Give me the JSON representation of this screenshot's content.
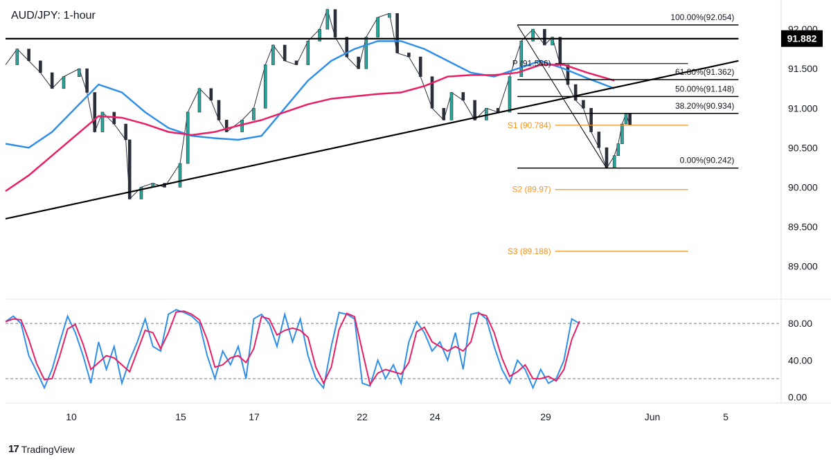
{
  "header": {
    "title": "AUD/JPY: 1-hour"
  },
  "branding": {
    "logo_mark": "17",
    "logo_text": "TradingView"
  },
  "chart_data": {
    "type": "candlestick",
    "symbol": "AUD/JPY",
    "timeframe": "1-hour",
    "price_axis": {
      "ticks": [
        "92.000",
        "91.500",
        "91.000",
        "90.500",
        "90.000",
        "89.500",
        "89.000"
      ],
      "tick_values": [
        92.0,
        91.5,
        91.0,
        90.5,
        90.0,
        89.5,
        89.0
      ],
      "current_price_label": "91.882",
      "current_price": 91.882,
      "ylim": [
        88.6,
        92.3
      ]
    },
    "time_axis": {
      "ticks": [
        "10",
        "15",
        "17",
        "22",
        "24",
        "29",
        "Jun",
        "5"
      ],
      "xlim": [
        0,
        100
      ]
    },
    "price_path": [
      [
        0,
        91.55
      ],
      [
        1.5,
        91.75
      ],
      [
        3,
        91.6
      ],
      [
        4.5,
        91.45
      ],
      [
        6,
        91.25
      ],
      [
        7.5,
        91.4
      ],
      [
        9.5,
        91.5
      ],
      [
        10.5,
        91.2
      ],
      [
        11.5,
        90.7
      ],
      [
        12.5,
        90.95
      ],
      [
        14,
        90.8
      ],
      [
        15.5,
        90.6
      ],
      [
        16,
        89.85
      ],
      [
        17.5,
        90.0
      ],
      [
        19,
        90.05
      ],
      [
        20.5,
        90.0
      ],
      [
        22.5,
        90.3
      ],
      [
        23.5,
        90.95
      ],
      [
        25,
        91.25
      ],
      [
        26.5,
        91.1
      ],
      [
        27.5,
        90.85
      ],
      [
        28.5,
        90.7
      ],
      [
        30.5,
        90.85
      ],
      [
        32,
        91.0
      ],
      [
        33.5,
        91.55
      ],
      [
        34.5,
        91.8
      ],
      [
        36,
        91.6
      ],
      [
        37.5,
        91.55
      ],
      [
        39,
        91.85
      ],
      [
        40.5,
        92.0
      ],
      [
        41.5,
        92.25
      ],
      [
        42.5,
        91.9
      ],
      [
        44,
        91.65
      ],
      [
        45.5,
        91.5
      ],
      [
        46.5,
        91.9
      ],
      [
        48,
        92.15
      ],
      [
        49.5,
        92.2
      ],
      [
        50.5,
        91.7
      ],
      [
        52,
        91.65
      ],
      [
        53.5,
        91.4
      ],
      [
        55,
        91.0
      ],
      [
        56.5,
        90.85
      ],
      [
        57.5,
        91.2
      ],
      [
        59,
        91.1
      ],
      [
        60.5,
        90.85
      ],
      [
        62,
        91.0
      ],
      [
        63.5,
        90.95
      ],
      [
        65,
        91.4
      ],
      [
        66.5,
        91.85
      ],
      [
        68,
        92.0
      ],
      [
        69.5,
        91.8
      ],
      [
        70.5,
        91.9
      ],
      [
        71.5,
        91.55
      ],
      [
        72.5,
        91.3
      ],
      [
        73.5,
        91.1
      ],
      [
        74.5,
        91.0
      ],
      [
        75.5,
        90.7
      ],
      [
        76.5,
        90.5
      ],
      [
        77.5,
        90.24
      ],
      [
        78.5,
        90.4
      ],
      [
        79,
        90.55
      ],
      [
        79.5,
        90.8
      ],
      [
        80,
        90.93
      ],
      [
        80.5,
        90.784
      ]
    ],
    "series": [
      {
        "name": "",
        "color": "#2f8fe8",
        "values": [
          [
            0,
            90.55
          ],
          [
            3,
            90.5
          ],
          [
            6,
            90.7
          ],
          [
            9,
            91.0
          ],
          [
            12,
            91.3
          ],
          [
            15,
            91.2
          ],
          [
            18,
            90.95
          ],
          [
            21,
            90.75
          ],
          [
            24,
            90.65
          ],
          [
            27,
            90.62
          ],
          [
            30,
            90.6
          ],
          [
            33,
            90.65
          ],
          [
            36,
            91.0
          ],
          [
            39,
            91.35
          ],
          [
            42,
            91.6
          ],
          [
            45,
            91.75
          ],
          [
            48,
            91.85
          ],
          [
            51,
            91.85
          ],
          [
            54,
            91.75
          ],
          [
            57,
            91.6
          ],
          [
            60,
            91.45
          ],
          [
            63,
            91.4
          ],
          [
            66,
            91.5
          ],
          [
            69,
            91.6
          ],
          [
            72,
            91.5
          ],
          [
            75,
            91.38
          ],
          [
            78.5,
            91.25
          ]
        ]
      },
      {
        "name": "",
        "color": "#e91e63",
        "values": [
          [
            0,
            89.95
          ],
          [
            3,
            90.15
          ],
          [
            6,
            90.4
          ],
          [
            9,
            90.65
          ],
          [
            12,
            90.9
          ],
          [
            15,
            90.88
          ],
          [
            18,
            90.8
          ],
          [
            21,
            90.7
          ],
          [
            24,
            90.66
          ],
          [
            27,
            90.7
          ],
          [
            30,
            90.78
          ],
          [
            33,
            90.85
          ],
          [
            36,
            90.95
          ],
          [
            39,
            91.05
          ],
          [
            42,
            91.12
          ],
          [
            45,
            91.15
          ],
          [
            48,
            91.18
          ],
          [
            51,
            91.2
          ],
          [
            54,
            91.28
          ],
          [
            57,
            91.4
          ],
          [
            60,
            91.42
          ],
          [
            63,
            91.42
          ],
          [
            66,
            91.45
          ],
          [
            69,
            91.55
          ],
          [
            72,
            91.55
          ],
          [
            75,
            91.45
          ],
          [
            78.5,
            91.35
          ]
        ]
      }
    ],
    "trendlines": [
      {
        "name": "ascending-trendline",
        "from": [
          0,
          89.6
        ],
        "to": [
          94.5,
          91.6
        ]
      },
      {
        "name": "horizontal-resistance",
        "from": [
          0,
          91.88
        ],
        "to": [
          94.5,
          91.88
        ]
      },
      {
        "name": "descending-fib-line",
        "from": [
          66,
          92.05
        ],
        "to": [
          77.5,
          90.24
        ]
      }
    ],
    "fibonacci": [
      {
        "label": "100.00%(92.054)",
        "value": 92.054,
        "x1": 66,
        "x2": 94.5
      },
      {
        "label": "61.80%(91.362)",
        "value": 91.362,
        "x1": 66,
        "x2": 94.5
      },
      {
        "label": "50.00%(91.148)",
        "value": 91.148,
        "x1": 66,
        "x2": 94.5
      },
      {
        "label": "38.20%(90.934)",
        "value": 90.934,
        "x1": 66,
        "x2": 94.5
      },
      {
        "label": "0.00%(90.242)",
        "value": 90.242,
        "x1": 66,
        "x2": 94.5
      }
    ],
    "pivots": [
      {
        "label": "P (91.566)",
        "value": 91.566,
        "color": "#131722",
        "x1": 65.5,
        "x2": 88
      },
      {
        "label": "S1 (90.784)",
        "value": 90.784,
        "color": "#f7931a",
        "x1": 65.5,
        "x2": 88
      },
      {
        "label": "S2 (89.97)",
        "value": 89.97,
        "color": "#f7931a",
        "x1": 65.5,
        "x2": 88
      },
      {
        "label": "S3 (89.188)",
        "value": 89.188,
        "color": "#f7931a",
        "x1": 65.5,
        "x2": 88
      }
    ],
    "oscillator": {
      "ticks": [
        "80.00",
        "40.00",
        "0.00"
      ],
      "tick_values": [
        80,
        40,
        0
      ],
      "levels": [
        80,
        20
      ],
      "ylim": [
        -5,
        105
      ],
      "k_color": "#2f8fe8",
      "d_color": "#e91e63",
      "values": [
        [
          0,
          82
        ],
        [
          1,
          88
        ],
        [
          2,
          80
        ],
        [
          3,
          45
        ],
        [
          4,
          28
        ],
        [
          5,
          10
        ],
        [
          6,
          30
        ],
        [
          7,
          60
        ],
        [
          8,
          88
        ],
        [
          9,
          70
        ],
        [
          10,
          45
        ],
        [
          11,
          15
        ],
        [
          12,
          60
        ],
        [
          13,
          30
        ],
        [
          14,
          55
        ],
        [
          15,
          15
        ],
        [
          16,
          40
        ],
        [
          17,
          60
        ],
        [
          18,
          85
        ],
        [
          19,
          55
        ],
        [
          20,
          50
        ],
        [
          21,
          90
        ],
        [
          22,
          95
        ],
        [
          23,
          92
        ],
        [
          24,
          88
        ],
        [
          25,
          80
        ],
        [
          26,
          45
        ],
        [
          27,
          20
        ],
        [
          28,
          50
        ],
        [
          29,
          35
        ],
        [
          30,
          55
        ],
        [
          31,
          20
        ],
        [
          32,
          85
        ],
        [
          33,
          90
        ],
        [
          34,
          80
        ],
        [
          35,
          55
        ],
        [
          36,
          90
        ],
        [
          37,
          60
        ],
        [
          38,
          85
        ],
        [
          39,
          45
        ],
        [
          40,
          20
        ],
        [
          41,
          10
        ],
        [
          42,
          55
        ],
        [
          43,
          92
        ],
        [
          44,
          90
        ],
        [
          45,
          85
        ],
        [
          46,
          15
        ],
        [
          47,
          12
        ],
        [
          48,
          40
        ],
        [
          49,
          20
        ],
        [
          50,
          35
        ],
        [
          51,
          15
        ],
        [
          52,
          60
        ],
        [
          53,
          82
        ],
        [
          54,
          70
        ],
        [
          55,
          50
        ],
        [
          56,
          60
        ],
        [
          57,
          40
        ],
        [
          58,
          70
        ],
        [
          59,
          30
        ],
        [
          60,
          90
        ],
        [
          61,
          92
        ],
        [
          62,
          85
        ],
        [
          63,
          55
        ],
        [
          64,
          30
        ],
        [
          65,
          15
        ],
        [
          66,
          40
        ],
        [
          67,
          30
        ],
        [
          68,
          10
        ],
        [
          69,
          30
        ],
        [
          70,
          15
        ],
        [
          71,
          20
        ],
        [
          72,
          40
        ],
        [
          73,
          85
        ],
        [
          74,
          80
        ]
      ]
    }
  }
}
